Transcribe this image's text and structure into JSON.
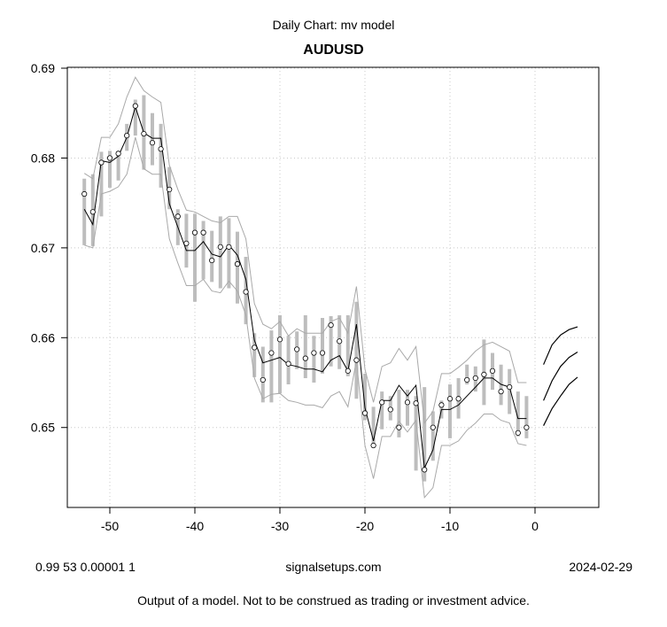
{
  "header": {
    "subtitle": "Daily Chart: mv model",
    "title": "AUDUSD"
  },
  "footer": {
    "params": "0.99 53 0.00001 1",
    "site": "signalsetups.com",
    "date": "2024-02-29",
    "disclaimer": "Output of a model.  Not to be construed as trading or investment advice."
  },
  "colors": {
    "points": "#ffffff",
    "point_stroke": "#000000",
    "range_bars": "#bdbdbd",
    "band": "#a9a9a9",
    "model_line": "#000000",
    "grid": "#c8c8c8"
  },
  "chart_data": {
    "type": "line",
    "title": "AUDUSD",
    "subtitle": "Daily Chart: mv model",
    "xlabel": "",
    "ylabel": "",
    "xlim": [
      -55,
      7.5
    ],
    "ylim": [
      0.6411,
      0.6901
    ],
    "x_ticks": [
      -50,
      -40,
      -30,
      -20,
      -10,
      0
    ],
    "y_ticks": [
      0.65,
      0.66,
      0.67,
      0.68,
      0.69
    ],
    "grid": true,
    "x": [
      -53,
      -52,
      -51,
      -50,
      -49,
      -48,
      -47,
      -46,
      -45,
      -44,
      -43,
      -42,
      -41,
      -40,
      -39,
      -38,
      -37,
      -36,
      -35,
      -34,
      -33,
      -32,
      -31,
      -30,
      -29,
      -28,
      -27,
      -26,
      -25,
      -24,
      -23,
      -22,
      -21,
      -20,
      -19,
      -18,
      -17,
      -16,
      -15,
      -14,
      -13,
      -12,
      -11,
      -10,
      -9,
      -8,
      -7,
      -6,
      -5,
      -4,
      -3,
      -2,
      -1
    ],
    "series": [
      {
        "name": "close",
        "kind": "points",
        "values": [
          0.676,
          0.674,
          0.6795,
          0.68,
          0.6805,
          0.6825,
          0.6858,
          0.6827,
          0.6817,
          0.681,
          0.6765,
          0.6735,
          0.6705,
          0.6717,
          0.6717,
          0.6686,
          0.6701,
          0.6701,
          0.6682,
          0.6651,
          0.6589,
          0.6553,
          0.6583,
          0.6598,
          0.6571,
          0.6587,
          0.6577,
          0.6583,
          0.6583,
          0.6614,
          0.6596,
          0.6563,
          0.6575,
          0.6516,
          0.648,
          0.6528,
          0.652,
          0.65,
          0.6528,
          0.6527,
          0.6453,
          0.65,
          0.6525,
          0.6532,
          0.6532,
          0.6553,
          0.6555,
          0.6559,
          0.6563,
          0.654,
          0.6545,
          0.6494,
          0.65
        ]
      },
      {
        "name": "range_low",
        "kind": "bar-low",
        "values": [
          0.6703,
          0.6702,
          0.6735,
          0.6767,
          0.6775,
          0.6808,
          0.6825,
          0.6787,
          0.6792,
          0.6767,
          0.6743,
          0.6703,
          0.6678,
          0.664,
          0.6665,
          0.6662,
          0.6655,
          0.6655,
          0.6638,
          0.6615,
          0.6556,
          0.6528,
          0.6528,
          0.6538,
          0.6548,
          0.6565,
          0.6555,
          0.655,
          0.656,
          0.6568,
          0.6565,
          0.6557,
          0.6532,
          0.6508,
          0.6478,
          0.6498,
          0.6508,
          0.6489,
          0.6502,
          0.6452,
          0.644,
          0.6463,
          0.651,
          0.6488,
          0.651,
          0.6548,
          0.654,
          0.6525,
          0.6542,
          0.6525,
          0.6515,
          0.649,
          0.6488
        ]
      },
      {
        "name": "range_high",
        "kind": "bar-high",
        "values": [
          0.6777,
          0.6782,
          0.6807,
          0.6808,
          0.6808,
          0.6838,
          0.6865,
          0.687,
          0.685,
          0.6838,
          0.679,
          0.6743,
          0.6738,
          0.6738,
          0.673,
          0.6719,
          0.6735,
          0.6733,
          0.6718,
          0.669,
          0.6605,
          0.659,
          0.6608,
          0.6625,
          0.6602,
          0.6607,
          0.6625,
          0.6602,
          0.6622,
          0.6624,
          0.6625,
          0.6625,
          0.664,
          0.656,
          0.6523,
          0.654,
          0.6535,
          0.6542,
          0.6542,
          0.6535,
          0.6545,
          0.6518,
          0.653,
          0.6548,
          0.6555,
          0.657,
          0.6568,
          0.6598,
          0.6583,
          0.657,
          0.6565,
          0.654,
          0.6535
        ]
      },
      {
        "name": "model",
        "kind": "line",
        "values": [
          0.6743,
          0.6726,
          0.6797,
          0.6795,
          0.6802,
          0.6823,
          0.6857,
          0.6828,
          0.6822,
          0.6822,
          0.6749,
          0.6723,
          0.6697,
          0.6697,
          0.6707,
          0.6693,
          0.669,
          0.6703,
          0.6692,
          0.6665,
          0.6597,
          0.6572,
          0.6575,
          0.6578,
          0.657,
          0.6568,
          0.6565,
          0.6565,
          0.6562,
          0.6575,
          0.658,
          0.6563,
          0.6615,
          0.6522,
          0.6485,
          0.653,
          0.653,
          0.6547,
          0.6535,
          0.6547,
          0.6455,
          0.6475,
          0.652,
          0.652,
          0.6525,
          0.6535,
          0.6545,
          0.6555,
          0.6555,
          0.6548,
          0.6545,
          0.651,
          0.651
        ]
      },
      {
        "name": "band_upper",
        "kind": "band",
        "values": [
          0.6783,
          0.6777,
          0.6823,
          0.6823,
          0.6838,
          0.6868,
          0.689,
          0.6875,
          0.6868,
          0.6862,
          0.6792,
          0.6765,
          0.6742,
          0.674,
          0.6735,
          0.673,
          0.6728,
          0.6735,
          0.6735,
          0.671,
          0.6638,
          0.6615,
          0.661,
          0.6618,
          0.6602,
          0.661,
          0.6605,
          0.6605,
          0.6605,
          0.6618,
          0.6622,
          0.6605,
          0.6657,
          0.6565,
          0.6528,
          0.6568,
          0.6572,
          0.6588,
          0.6575,
          0.659,
          0.6505,
          0.6518,
          0.656,
          0.656,
          0.6567,
          0.6575,
          0.6585,
          0.6592,
          0.6595,
          0.659,
          0.6585,
          0.655,
          0.655
        ]
      },
      {
        "name": "band_lower",
        "kind": "band",
        "values": [
          0.6703,
          0.67,
          0.676,
          0.6763,
          0.6768,
          0.6782,
          0.6823,
          0.6788,
          0.6782,
          0.6782,
          0.671,
          0.6683,
          0.6658,
          0.6658,
          0.6665,
          0.6652,
          0.665,
          0.6663,
          0.6652,
          0.6625,
          0.6555,
          0.6532,
          0.6537,
          0.6538,
          0.653,
          0.6528,
          0.6525,
          0.6525,
          0.6522,
          0.6535,
          0.654,
          0.6523,
          0.6575,
          0.648,
          0.6443,
          0.649,
          0.649,
          0.6507,
          0.6495,
          0.6508,
          0.6422,
          0.6433,
          0.648,
          0.648,
          0.6485,
          0.6497,
          0.6505,
          0.6515,
          0.6515,
          0.6508,
          0.6505,
          0.6482,
          0.648
        ]
      }
    ],
    "forecasts": [
      {
        "name": "forecast_upper",
        "x": [
          1,
          2,
          3,
          4,
          5
        ],
        "values": [
          0.657,
          0.6592,
          0.6603,
          0.6609,
          0.6612
        ]
      },
      {
        "name": "forecast_mid",
        "x": [
          1,
          2,
          3,
          4,
          5
        ],
        "values": [
          0.653,
          0.6552,
          0.6568,
          0.6578,
          0.6584
        ]
      },
      {
        "name": "forecast_lower",
        "x": [
          1,
          2,
          3,
          4,
          5
        ],
        "values": [
          0.6502,
          0.6521,
          0.6535,
          0.6548,
          0.6556
        ]
      }
    ]
  }
}
